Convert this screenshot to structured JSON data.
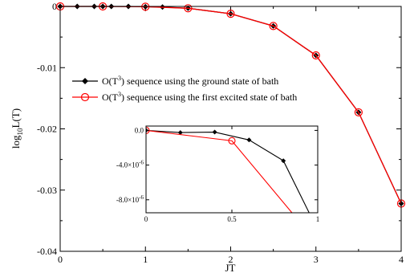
{
  "chart_data": {
    "type": "line",
    "xlabel": "JT",
    "ylabel_main": "log",
    "ylabel_sub": "10",
    "ylabel_tail": "L(T)",
    "xlim": [
      0,
      4
    ],
    "ylim": [
      -0.04,
      0
    ],
    "x_ticks": [
      0,
      1,
      2,
      3,
      4
    ],
    "x_tick_labels": [
      "0",
      "1",
      "2",
      "3",
      "4"
    ],
    "y_ticks": [
      0,
      -0.01,
      -0.02,
      -0.03,
      -0.04
    ],
    "y_tick_labels": [
      "0",
      "-0.01",
      "-0.02",
      "-0.03",
      "-0.04"
    ],
    "grid": false,
    "legend_position": "center-left",
    "series": [
      {
        "name": "O(T³)  sequence using the ground state of bath",
        "label_prefix": "O(T",
        "label_sup": "3",
        "label_suffix": ")  sequence using the ground state of bath",
        "color": "#000000",
        "marker": "diamond",
        "x": [
          0,
          0.2,
          0.4,
          0.5,
          0.6,
          0.8,
          1.0,
          1.2,
          1.5,
          2.0,
          2.5,
          3.0,
          3.5,
          4.0
        ],
        "y": [
          0,
          0,
          0,
          0,
          0,
          0,
          -5e-05,
          -0.0001,
          -0.0003,
          -0.0012,
          -0.0032,
          -0.008,
          -0.0173,
          -0.0322
        ]
      },
      {
        "name": "O(T³) sequence using the first excited state of bath",
        "label_prefix": "O(T",
        "label_sup": "3",
        "label_suffix": ") sequence using the first excited state of bath",
        "color": "#ff0000",
        "marker": "circle",
        "x": [
          0,
          0.5,
          1.0,
          1.5,
          2.0,
          2.5,
          3.0,
          3.5,
          4.0
        ],
        "y": [
          0,
          0,
          -5e-05,
          -0.0003,
          -0.0012,
          -0.0032,
          -0.008,
          -0.0173,
          -0.0322
        ]
      }
    ],
    "inset": {
      "xlim": [
        0,
        1
      ],
      "ylim": [
        -9.5e-06,
        5e-07
      ],
      "x_ticks": [
        0,
        0.5,
        1
      ],
      "x_tick_labels": [
        "0",
        "0.5",
        "1"
      ],
      "y_ticks": [
        0,
        -4e-06,
        -8e-06
      ],
      "y_tick_labels": [
        {
          "mant": "0.0",
          "exp": "",
          "base": ""
        },
        {
          "mant": "-4.0",
          "exp": "-6",
          "base": "×10"
        },
        {
          "mant": "-8.0",
          "exp": "-6",
          "base": "×10"
        }
      ],
      "series": [
        {
          "color": "#000000",
          "marker": "diamond",
          "x": [
            0,
            0.2,
            0.4,
            0.6,
            0.8,
            0.95
          ],
          "y": [
            0,
            -2.5e-07,
            -2e-07,
            -1.1e-06,
            -3.5e-06,
            -9.5e-06
          ],
          "marked": [
            true,
            true,
            true,
            true,
            true,
            false
          ]
        },
        {
          "color": "#ff0000",
          "marker": "circle",
          "x": [
            0,
            0.5,
            0.85
          ],
          "y": [
            0,
            -1.2e-06,
            -9.5e-06
          ],
          "marked": [
            true,
            true,
            false
          ]
        }
      ]
    }
  }
}
